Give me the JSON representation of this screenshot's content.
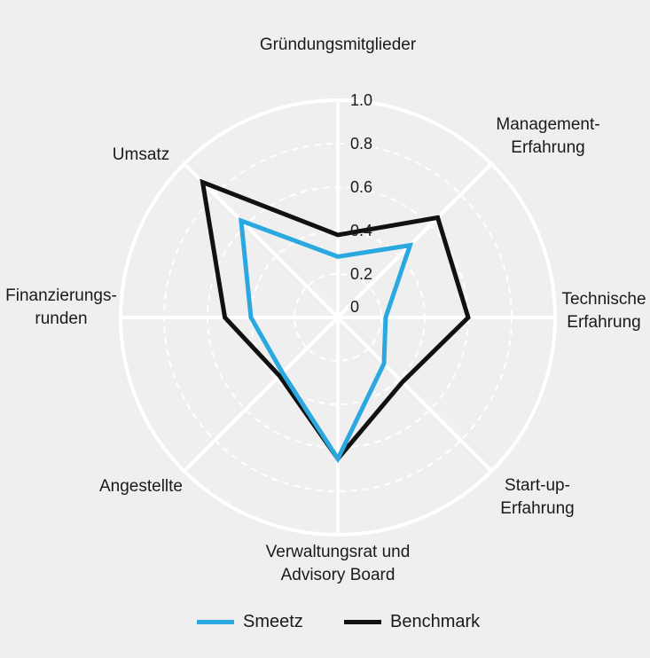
{
  "chart_data": {
    "type": "radar",
    "title": "",
    "axes": [
      [
        "Gründungsmitglieder"
      ],
      [
        "Management-",
        "Erfahrung"
      ],
      [
        "Technische",
        "Erfahrung"
      ],
      [
        "Start-up-",
        "Erfahrung"
      ],
      [
        "Verwaltungsrat und",
        "Advisory Board"
      ],
      [
        "Angestellte"
      ],
      [
        "Finanzierungs-",
        "runden"
      ],
      [
        "Umsatz"
      ]
    ],
    "tick_labels": [
      "1.0",
      "0.8",
      "0.6",
      "0.4",
      "0.2",
      "0"
    ],
    "tick_values": [
      1.0,
      0.8,
      0.6,
      0.4,
      0.2,
      0
    ],
    "range": [
      0,
      1.0
    ],
    "series": [
      {
        "name": "Smeetz",
        "color": "#2ba8df",
        "values": [
          0.28,
          0.47,
          0.22,
          0.3,
          0.65,
          0.36,
          0.4,
          0.63
        ]
      },
      {
        "name": "Benchmark",
        "color": "#111111",
        "values": [
          0.38,
          0.65,
          0.6,
          0.42,
          0.65,
          0.38,
          0.52,
          0.88
        ]
      }
    ],
    "grid": true,
    "legend_position": "bottom"
  }
}
